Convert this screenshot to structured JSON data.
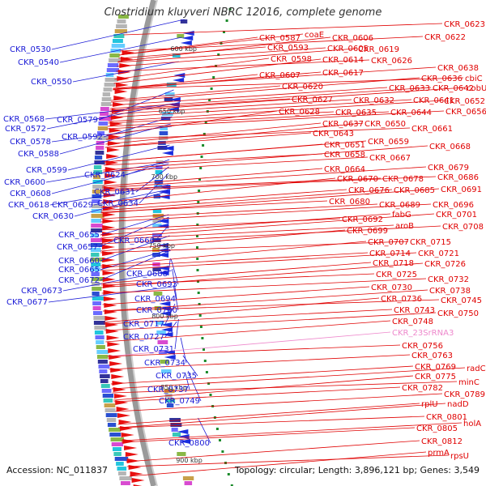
{
  "title": "Clostridium kluyveri NBRC 12016, complete genome",
  "footer": {
    "accession": "Accession: NC_011837",
    "topology": "Topology: circular; Length: 3,896,121 bp; Genes: 3,549"
  },
  "colors": {
    "left_label": "#1a1ad6",
    "right_label": "#e00000",
    "rrna_label": "#ee88cc",
    "ring": "#888888",
    "kbp": "#333333"
  },
  "kbp_marks": [
    "600 kbp",
    "650 kbp",
    "700 kbp",
    "750 kbp",
    "800 kbp",
    "850 kbp",
    "900 kbp"
  ],
  "left_labels": [
    "CKR_0530",
    "CKR_0540",
    "CKR_0550",
    "CKR_0568",
    "CKR_0579",
    "CKR_0572",
    "CKR_0592",
    "CKR_0578",
    "CKR_0588",
    "CKR_0599",
    "CKR_0600",
    "CKR_0624",
    "CKR_0608",
    "CKR_0631",
    "CKR_0618",
    "CKR_0629",
    "CKR_0634",
    "CKR_0630",
    "CKR_0655",
    "CKR_0666",
    "CKR_0657",
    "CKR_0660",
    "CKR_0665",
    "CKR_0688",
    "CKR_0672",
    "CKR_0693",
    "CKR_0673",
    "CKR_0677",
    "CKR_0694",
    "CKR_0700",
    "CKR_0717",
    "CKR_0727",
    "CKR_0731",
    "CKR_0734",
    "CKR_0735",
    "CKR_0737",
    "CKR_0749",
    "CKR_0800"
  ],
  "right_labels": [
    "CKR_0623",
    "CKR_0622",
    "CKR_0587",
    "coaE",
    "CKR_0606",
    "CKR_0593",
    "CKR_0605",
    "CKR_0619",
    "CKR_0598",
    "CKR_0614",
    "CKR_0626",
    "CKR_0607",
    "CKR_0617",
    "CKR_0638",
    "CKR_0636",
    "cbiC",
    "CKR_0620",
    "CKR_0633",
    "CKR_0642",
    "cobU",
    "CKR_0627",
    "CKR_0632",
    "CKR_0641",
    "CKR_0652",
    "CKR_0628",
    "CKR_0635",
    "CKR_0644",
    "CKR_0656",
    "CKR_0637",
    "CKR_0650",
    "CKR_0661",
    "CKR_0643",
    "CKR_0651",
    "CKR_0659",
    "CKR_0668",
    "CKR_0658",
    "CKR_0667",
    "CKR_0664",
    "CKR_0679",
    "CKR_0670",
    "CKR_0678",
    "CKR_0686",
    "CKR_0676",
    "CKR_0685",
    "CKR_0691",
    "CKR_0680",
    "CKR_0689",
    "CKR_0696",
    "fabG",
    "CKR_0701",
    "CKR_0692",
    "aroB",
    "CKR_0708",
    "CKR_0699",
    "CKR_0707",
    "CKR_0715",
    "CKR_0714",
    "CKR_0721",
    "CKR_0718",
    "CKR_0726",
    "CKR_0725",
    "CKR_0732",
    "CKR_0730",
    "CKR_0738",
    "CKR_0736",
    "CKR_0745",
    "CKR_0743",
    "CKR_0750",
    "CKR_0748",
    "CKR_23SrRNA3",
    "CKR_0756",
    "CKR_0763",
    "CKR_0769",
    "radC",
    "CKR_0775",
    "minC",
    "CKR_0782",
    "CKR_0789",
    "rplU",
    "nadD",
    "CKR_0801",
    "CKR_0805",
    "holA",
    "CKR_0812",
    "prmA",
    "rpsU"
  ]
}
